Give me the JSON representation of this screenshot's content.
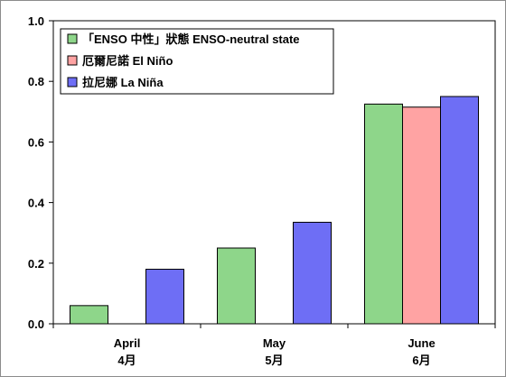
{
  "chart_data": {
    "type": "bar",
    "title": "",
    "xlabel": "",
    "ylabel": "",
    "ylim": [
      0,
      1.0
    ],
    "yticks": [
      "0.0",
      "0.2",
      "0.4",
      "0.6",
      "0.8",
      "1.0"
    ],
    "grid": false,
    "legend": "top-left",
    "categories": [
      {
        "line1": "April",
        "line2": "4月"
      },
      {
        "line1": "May",
        "line2": "5月"
      },
      {
        "line1": "June",
        "line2": "6月"
      }
    ],
    "series": [
      {
        "name": "「ENSO 中性」狀態 ENSO-neutral state",
        "color": "#8ed68a",
        "values": [
          0.06,
          0.25,
          0.725
        ]
      },
      {
        "name": "厄爾尼諾 El Niño",
        "color": "#ffa3a3",
        "values": [
          0.0,
          0.0,
          0.715
        ]
      },
      {
        "name": "拉尼娜 La Niña",
        "color": "#6e6ef5",
        "values": [
          0.18,
          0.335,
          0.75
        ]
      }
    ]
  }
}
